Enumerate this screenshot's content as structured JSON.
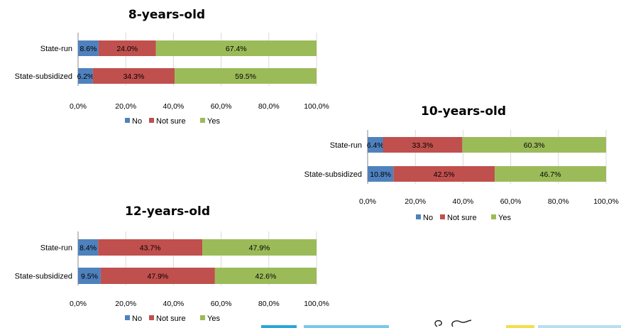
{
  "colors": {
    "no": "#4f81bd",
    "not_sure": "#c0504d",
    "yes": "#9bbb59"
  },
  "chart_data": [
    {
      "type": "bar",
      "orientation": "horizontal",
      "stacked": true,
      "title": "8-years-old",
      "categories": [
        "State-run",
        "State-subsidized"
      ],
      "series": [
        {
          "name": "No",
          "values": [
            8.6,
            6.2
          ],
          "labels": [
            "8.6%",
            "6.2%"
          ]
        },
        {
          "name": "Not sure",
          "values": [
            24.0,
            34.3
          ],
          "labels": [
            "24.0%",
            "34.3%"
          ]
        },
        {
          "name": "Yes",
          "values": [
            67.4,
            59.5
          ],
          "labels": [
            "67.4%",
            "59.5%"
          ]
        }
      ],
      "xlim": [
        0,
        100
      ],
      "xticks": [
        "0,0%",
        "20,0%",
        "40,0%",
        "60,0%",
        "80,0%",
        "100,0%"
      ],
      "grid": true,
      "legend": "bottom"
    },
    {
      "type": "bar",
      "orientation": "horizontal",
      "stacked": true,
      "title": "10-years-old",
      "categories": [
        "State-run",
        "State-subsidized"
      ],
      "series": [
        {
          "name": "No",
          "values": [
            6.4,
            10.8
          ],
          "labels": [
            "6.4%",
            "10.8%"
          ]
        },
        {
          "name": "Not sure",
          "values": [
            33.3,
            42.5
          ],
          "labels": [
            "33.3%",
            "42.5%"
          ]
        },
        {
          "name": "Yes",
          "values": [
            60.3,
            46.7
          ],
          "labels": [
            "60.3%",
            "46.7%"
          ]
        }
      ],
      "xlim": [
        0,
        100
      ],
      "xticks": [
        "0,0%",
        "20,0%",
        "40,0%",
        "60,0%",
        "80,0%",
        "100,0%"
      ],
      "grid": true,
      "legend": "bottom"
    },
    {
      "type": "bar",
      "orientation": "horizontal",
      "stacked": true,
      "title": "12-years-old",
      "categories": [
        "State-run",
        "State-subsidized"
      ],
      "series": [
        {
          "name": "No",
          "values": [
            8.4,
            9.5
          ],
          "labels": [
            "8.4%",
            "9.5%"
          ]
        },
        {
          "name": "Not sure",
          "values": [
            43.7,
            47.9
          ],
          "labels": [
            "43.7%",
            "47.9%"
          ]
        },
        {
          "name": "Yes",
          "values": [
            47.9,
            42.6
          ],
          "labels": [
            "47.9%",
            "42.6%"
          ]
        }
      ],
      "xlim": [
        0,
        100
      ],
      "xticks": [
        "0,0%",
        "20,0%",
        "40,0%",
        "60,0%",
        "80,0%",
        "100,0%"
      ],
      "grid": true,
      "legend": "bottom"
    }
  ]
}
